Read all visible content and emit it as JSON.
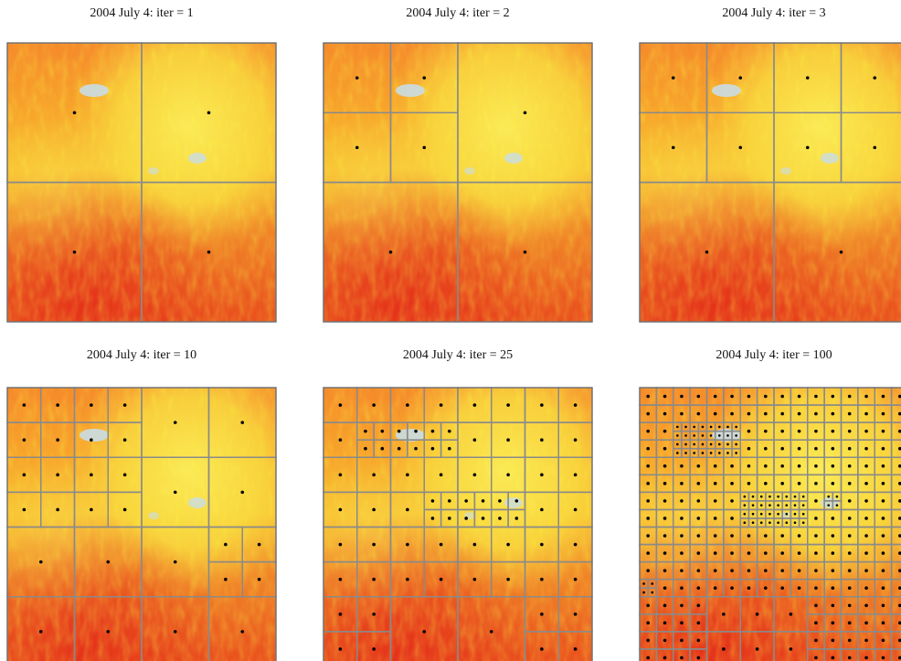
{
  "panels": [
    {
      "title": "2004 July 4: iter = 1"
    },
    {
      "title": "2004 July 4: iter = 2"
    },
    {
      "title": "2004 July 4: iter = 3"
    },
    {
      "title": "2004 July 4: iter = 10"
    },
    {
      "title": "2004 July 4: iter = 25"
    },
    {
      "title": "2004 July 4: iter = 100"
    }
  ]
}
